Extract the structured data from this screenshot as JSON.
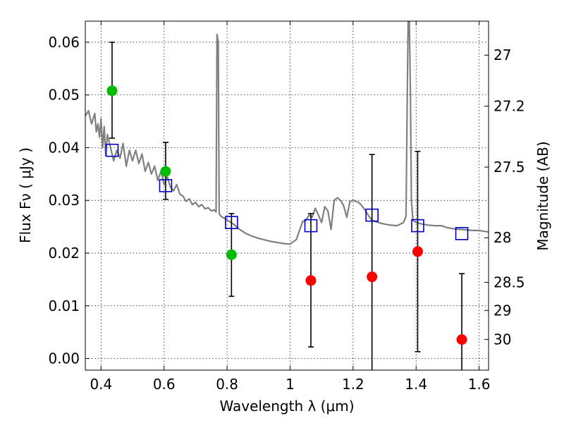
{
  "chart_data": {
    "type": "scatter",
    "xlabel": "Wavelength  λ (μm)",
    "ylabel": "Flux  Fν  ( μJy )",
    "y2label": "Magnitude (AB)",
    "xlim": [
      0.35,
      1.63
    ],
    "ylim": [
      -0.0022,
      0.064
    ],
    "grid": true,
    "x_ticks": [
      0.4,
      0.6,
      0.8,
      1.0,
      1.2,
      1.4,
      1.6
    ],
    "x_tick_labels": [
      "0.4",
      "0.6",
      "0.8",
      "1",
      "1.2",
      "1.4",
      "1.6"
    ],
    "y_ticks": [
      0.0,
      0.01,
      0.02,
      0.03,
      0.04,
      0.05,
      0.06
    ],
    "y_tick_labels": [
      "0.00",
      "0.01",
      "0.02",
      "0.03",
      "0.04",
      "0.05",
      "0.06"
    ],
    "magnitude_ticks": [
      {
        "label": "27",
        "mag": 27.0
      },
      {
        "label": "27.2",
        "mag": 27.2
      },
      {
        "label": "27.5",
        "mag": 27.5
      },
      {
        "label": "28",
        "mag": 28.0
      },
      {
        "label": "28.5",
        "mag": 28.5
      },
      {
        "label": "29",
        "mag": 29.0
      },
      {
        "label": "30",
        "mag": 30.0
      }
    ],
    "colors": {
      "sed_model": "#808080",
      "model_photometry": "#0000cc",
      "detections": "#00bb00",
      "upper_limits": "#ff0000",
      "error_bars": "#000000"
    },
    "sed_model": {
      "x": [
        0.35,
        0.36,
        0.37,
        0.38,
        0.385,
        0.39,
        0.395,
        0.4,
        0.405,
        0.41,
        0.415,
        0.42,
        0.43,
        0.44,
        0.45,
        0.46,
        0.47,
        0.48,
        0.49,
        0.5,
        0.51,
        0.52,
        0.53,
        0.54,
        0.55,
        0.56,
        0.57,
        0.58,
        0.59,
        0.6,
        0.61,
        0.62,
        0.63,
        0.64,
        0.65,
        0.66,
        0.67,
        0.68,
        0.69,
        0.7,
        0.71,
        0.72,
        0.73,
        0.74,
        0.75,
        0.76,
        0.765,
        0.768,
        0.772,
        0.775,
        0.78,
        0.8,
        0.82,
        0.84,
        0.86,
        0.88,
        0.9,
        0.92,
        0.94,
        0.96,
        0.98,
        1.0,
        1.02,
        1.04,
        1.05,
        1.06,
        1.07,
        1.08,
        1.09,
        1.1,
        1.11,
        1.12,
        1.13,
        1.14,
        1.15,
        1.16,
        1.17,
        1.18,
        1.19,
        1.2,
        1.21,
        1.22,
        1.23,
        1.24,
        1.25,
        1.26,
        1.28,
        1.3,
        1.32,
        1.34,
        1.36,
        1.368,
        1.372,
        1.375,
        1.378,
        1.382,
        1.385,
        1.39,
        1.4,
        1.42,
        1.44,
        1.46,
        1.48,
        1.5,
        1.52,
        1.54,
        1.56,
        1.58,
        1.6,
        1.63
      ],
      "y": [
        0.046,
        0.047,
        0.0445,
        0.0465,
        0.043,
        0.0445,
        0.042,
        0.0455,
        0.04,
        0.044,
        0.0385,
        0.0425,
        0.04,
        0.0375,
        0.0395,
        0.038,
        0.0408,
        0.0365,
        0.0395,
        0.0375,
        0.0395,
        0.037,
        0.0388,
        0.0355,
        0.0372,
        0.035,
        0.0365,
        0.0338,
        0.0355,
        0.033,
        0.0345,
        0.0325,
        0.0318,
        0.033,
        0.0312,
        0.0308,
        0.0298,
        0.0303,
        0.0292,
        0.0296,
        0.0288,
        0.0292,
        0.0284,
        0.0286,
        0.028,
        0.0282,
        0.0278,
        0.0615,
        0.06,
        0.0275,
        0.027,
        0.0263,
        0.0255,
        0.0245,
        0.0237,
        0.0232,
        0.0228,
        0.0225,
        0.0222,
        0.022,
        0.0218,
        0.0217,
        0.0226,
        0.026,
        0.0262,
        0.0272,
        0.0268,
        0.0285,
        0.0272,
        0.0258,
        0.0288,
        0.028,
        0.0245,
        0.03,
        0.0305,
        0.03,
        0.029,
        0.0268,
        0.0298,
        0.03,
        0.0298,
        0.0295,
        0.0288,
        0.028,
        0.027,
        0.0262,
        0.0258,
        0.0255,
        0.0253,
        0.0252,
        0.0258,
        0.027,
        0.05,
        0.065,
        0.066,
        0.05,
        0.03,
        0.0262,
        0.0258,
        0.0255,
        0.0253,
        0.0252,
        0.0252,
        0.0248,
        0.0246,
        0.0245,
        0.0244,
        0.0243,
        0.0243,
        0.024
      ]
    },
    "model_photometry": {
      "x": [
        0.435,
        0.605,
        0.814,
        1.066,
        1.26,
        1.405,
        1.545
      ],
      "y": [
        0.0395,
        0.0328,
        0.0258,
        0.0252,
        0.0272,
        0.0252,
        0.0237
      ]
    },
    "detections": {
      "x": [
        0.435,
        0.605,
        0.814
      ],
      "y": [
        0.0508,
        0.0355,
        0.0197
      ],
      "yerr_low": [
        0.0418,
        0.0302,
        0.0118
      ],
      "yerr_high": [
        0.06,
        0.041,
        0.0275
      ]
    },
    "upper_limits": {
      "x": [
        1.066,
        1.26,
        1.405,
        1.545
      ],
      "y": [
        0.0148,
        0.0155,
        0.0203,
        0.0036
      ],
      "yerr_low": [
        0.0022,
        -0.0022,
        0.0013,
        -0.0022
      ],
      "yerr_high": [
        0.0275,
        0.0387,
        0.0393,
        0.0161
      ]
    }
  }
}
